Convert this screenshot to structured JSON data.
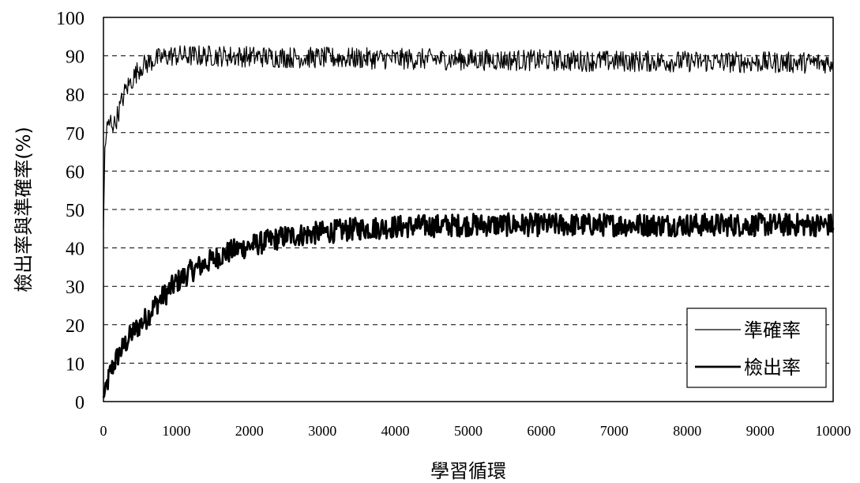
{
  "chart_data": {
    "type": "line",
    "title": "",
    "xlabel": "學習循環",
    "ylabel": "檢出率與準確率(%)",
    "xlim": [
      0,
      10000
    ],
    "ylim": [
      0,
      100
    ],
    "x_ticks": [
      "0",
      "1000",
      "2000",
      "3000",
      "4000",
      "5000",
      "6000",
      "7000",
      "8000",
      "9000",
      "10000"
    ],
    "y_ticks": [
      "0",
      "10",
      "20",
      "30",
      "40",
      "50",
      "60",
      "70",
      "80",
      "90",
      "100"
    ],
    "grid": "horizontal dashed",
    "legend_position": "bottom-right",
    "series": [
      {
        "name": "準確率",
        "line_weight": "thin",
        "color": "#000000",
        "x": [
          0,
          20,
          50,
          100,
          150,
          200,
          250,
          300,
          400,
          500,
          600,
          700,
          800,
          900,
          1000,
          1200,
          1500,
          2000,
          2500,
          3000,
          4000,
          5000,
          6000,
          7000,
          8000,
          9000,
          10000
        ],
        "y": [
          45,
          66,
          71,
          73,
          72,
          75,
          78,
          81,
          84,
          87,
          88,
          89,
          89.5,
          90,
          90,
          90,
          90,
          89.8,
          89.6,
          89.5,
          89.2,
          89,
          88.8,
          88.6,
          88.5,
          88.3,
          88.2
        ],
        "noise": 2.8
      },
      {
        "name": "檢出率",
        "line_weight": "thick",
        "color": "#000000",
        "x": [
          0,
          100,
          200,
          300,
          400,
          500,
          600,
          700,
          800,
          900,
          1000,
          1200,
          1400,
          1600,
          1800,
          2000,
          2500,
          3000,
          3500,
          4000,
          5000,
          6000,
          7000,
          8000,
          9000,
          10000
        ],
        "y": [
          1,
          8,
          12,
          15,
          18,
          20,
          22,
          25,
          27,
          29,
          31,
          34,
          36,
          38,
          39.5,
          40.5,
          43,
          44,
          45,
          45.5,
          46,
          46,
          46,
          46,
          46,
          46
        ],
        "noise": 3.0
      }
    ]
  }
}
